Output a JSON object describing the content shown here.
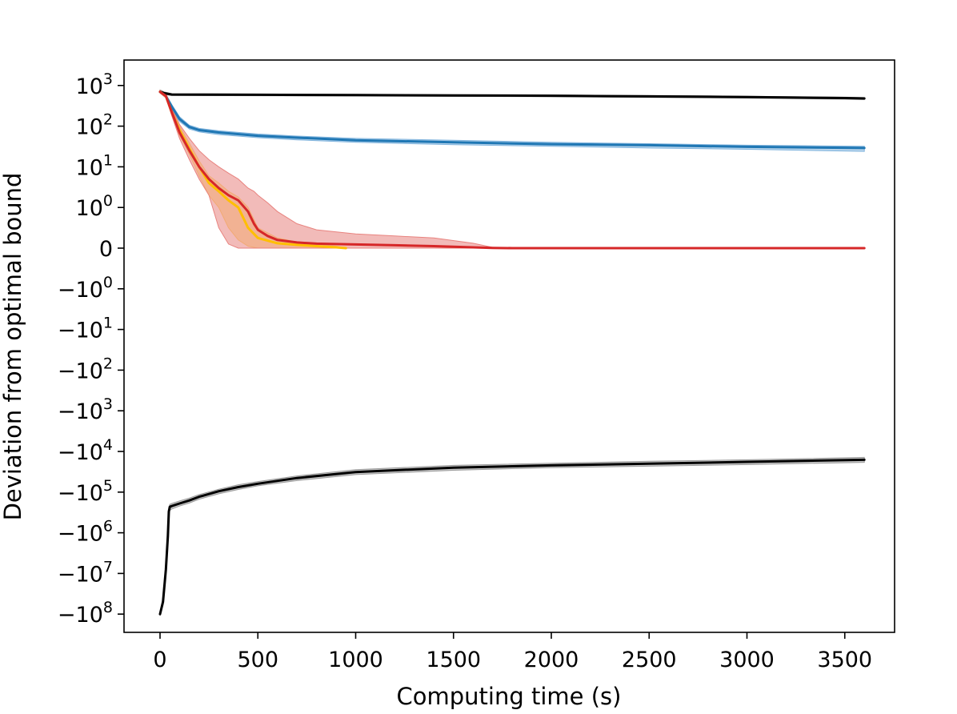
{
  "chart_data": {
    "type": "line",
    "title": "",
    "xlabel": "Computing time (s)",
    "ylabel": "Deviation from optimal bound",
    "xlim": [
      -180,
      3800
    ],
    "x_ticks": [
      0,
      500,
      1000,
      1500,
      2000,
      2500,
      3000,
      3500
    ],
    "x_tick_labels": [
      "0",
      "500",
      "1000",
      "1500",
      "2000",
      "2500",
      "3000",
      "3500"
    ],
    "y_scale": "symlog",
    "y_linthresh": 1,
    "y_ticks": [
      1000,
      100,
      10,
      1,
      0,
      -1,
      -10,
      -100,
      -1000,
      -10000,
      -100000,
      -1000000,
      -10000000,
      -100000000
    ],
    "y_tick_labels": [
      {
        "base": "10",
        "exp": "3"
      },
      {
        "base": "10",
        "exp": "2"
      },
      {
        "base": "10",
        "exp": "1"
      },
      {
        "base": "10",
        "exp": "0"
      },
      {
        "base": "0",
        "exp": ""
      },
      {
        "base": "−10",
        "exp": "0"
      },
      {
        "base": "−10",
        "exp": "1"
      },
      {
        "base": "−10",
        "exp": "2"
      },
      {
        "base": "−10",
        "exp": "3"
      },
      {
        "base": "−10",
        "exp": "4"
      },
      {
        "base": "−10",
        "exp": "5"
      },
      {
        "base": "−10",
        "exp": "6"
      },
      {
        "base": "−10",
        "exp": "7"
      },
      {
        "base": "−10",
        "exp": "8"
      }
    ],
    "grid": false,
    "legend": "none",
    "series": [
      {
        "color": "#000000",
        "band_color": "#9a9a9a",
        "x": [
          0,
          20,
          60,
          500,
          1000,
          1500,
          2000,
          2500,
          3000,
          3500,
          3600
        ],
        "y": [
          700,
          650,
          600,
          590,
          580,
          570,
          560,
          540,
          520,
          490,
          480
        ],
        "band_low": [
          650,
          600,
          570,
          560,
          550,
          540,
          530,
          510,
          490,
          460,
          450
        ],
        "band_high": [
          780,
          700,
          630,
          615,
          605,
          595,
          585,
          565,
          545,
          515,
          505
        ]
      },
      {
        "color": "#1f77b4",
        "band_color": "#7fb3dd",
        "x": [
          0,
          30,
          60,
          100,
          150,
          200,
          300,
          500,
          700,
          1000,
          1500,
          2000,
          2500,
          3000,
          3600
        ],
        "y": [
          700,
          550,
          300,
          150,
          95,
          80,
          70,
          58,
          52,
          45,
          40,
          36,
          34,
          31,
          29
        ],
        "band_low": [
          650,
          500,
          260,
          130,
          85,
          72,
          62,
          52,
          46,
          40,
          35,
          32,
          29,
          27,
          24
        ],
        "band_high": [
          760,
          600,
          340,
          170,
          105,
          88,
          77,
          64,
          57,
          50,
          45,
          40,
          37,
          34,
          32
        ]
      },
      {
        "color": "#ffbf00",
        "band_color": "#ffd966",
        "x": [
          0,
          30,
          60,
          100,
          150,
          200,
          250,
          300,
          350,
          400,
          450,
          500,
          600,
          700,
          800,
          900,
          950
        ],
        "y": [
          700,
          550,
          220,
          80,
          28,
          10,
          4,
          2.5,
          1.5,
          1,
          0.5,
          0.25,
          0.12,
          0.08,
          0.05,
          0.02,
          0
        ],
        "band_low": [
          650,
          500,
          180,
          60,
          20,
          6,
          2,
          1,
          0.5,
          0.2,
          0.05,
          0,
          0,
          0,
          0,
          0,
          0
        ],
        "band_high": [
          760,
          600,
          260,
          100,
          38,
          14,
          6,
          4,
          2.5,
          1.8,
          1,
          0.5,
          0.25,
          0.15,
          0.1,
          0.05,
          0
        ]
      },
      {
        "color": "#d62728",
        "band_color": "#e8837f",
        "x": [
          0,
          30,
          60,
          100,
          150,
          200,
          250,
          300,
          350,
          400,
          450,
          480,
          500,
          550,
          600,
          700,
          800,
          1000,
          1200,
          1400,
          1600,
          1700,
          1800,
          3600
        ],
        "y": [
          700,
          550,
          220,
          70,
          25,
          10,
          5,
          3,
          2,
          1.5,
          0.9,
          0.6,
          0.45,
          0.3,
          0.2,
          0.14,
          0.11,
          0.09,
          0.07,
          0.05,
          0.02,
          0.005,
          0,
          0
        ],
        "band_low": [
          650,
          500,
          180,
          50,
          15,
          5,
          2,
          0.5,
          0.1,
          0,
          0,
          0,
          0,
          0,
          0,
          0,
          0,
          0,
          0,
          0,
          0,
          0,
          0,
          0
        ],
        "band_high": [
          760,
          620,
          280,
          110,
          50,
          25,
          15,
          10,
          7,
          5,
          3,
          2.5,
          2,
          1.3,
          0.9,
          0.6,
          0.45,
          0.35,
          0.3,
          0.25,
          0.12,
          0.02,
          0,
          0
        ]
      },
      {
        "color": "#000000",
        "band_color": "#9a9a9a",
        "x": [
          0,
          15,
          30,
          40,
          45,
          50,
          60,
          100,
          150,
          200,
          300,
          400,
          500,
          700,
          1000,
          1500,
          2000,
          2500,
          3000,
          3600
        ],
        "y": [
          -100000000,
          -50000000,
          -8000000,
          -1200000,
          -300000,
          -230000,
          -220000,
          -190000,
          -160000,
          -130000,
          -95000,
          -75000,
          -62000,
          -45000,
          -32000,
          -25000,
          -22000,
          -20000,
          -18000,
          -16000
        ],
        "band_low": [
          -110000000,
          -60000000,
          -10000000,
          -1500000,
          -380000,
          -280000,
          -260000,
          -220000,
          -185000,
          -150000,
          -110000,
          -86000,
          -70000,
          -52000,
          -37000,
          -29000,
          -25000,
          -23000,
          -21000,
          -18500
        ],
        "band_high": [
          -90000000,
          -40000000,
          -6500000,
          -950000,
          -250000,
          -200000,
          -190000,
          -165000,
          -140000,
          -115000,
          -85000,
          -66000,
          -55000,
          -40000,
          -28000,
          -22000,
          -19500,
          -17500,
          -16000,
          -14000
        ]
      }
    ]
  }
}
